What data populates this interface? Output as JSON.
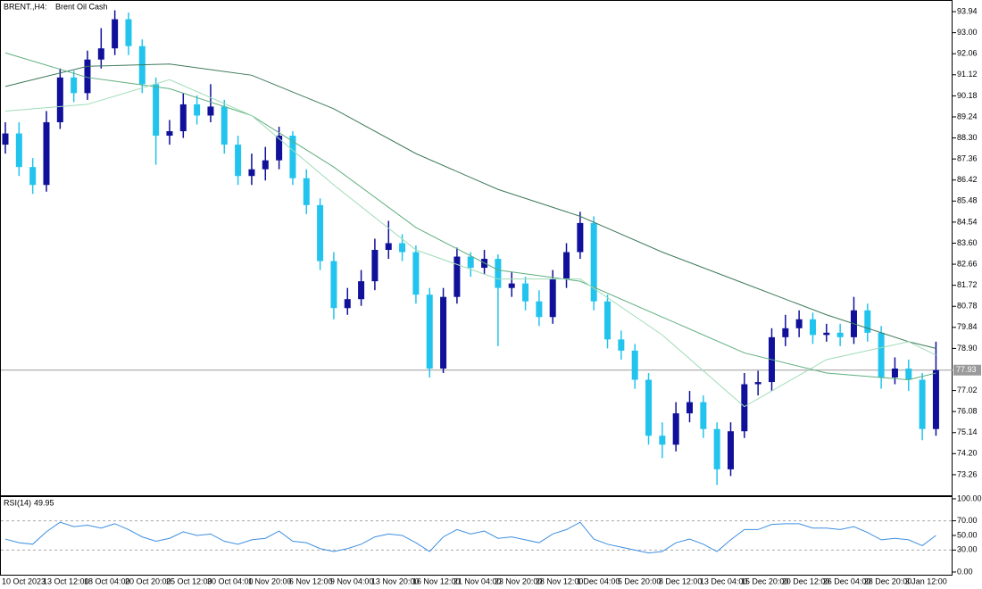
{
  "chart_data": [
    {
      "type": "candlestick",
      "symbol": "BRENT.,H4:",
      "title": "Brent Oil Cash",
      "x": [
        "10 Oct 2023",
        null,
        null,
        "13 Oct 12:00",
        null,
        null,
        "18 Oct 04:00",
        null,
        null,
        "20 Oct 20:00",
        null,
        null,
        "25 Oct 12:00",
        null,
        null,
        "30 Oct 04:00",
        null,
        null,
        "1 Nov 20:00",
        null,
        null,
        "6 Nov 12:00",
        null,
        null,
        "9 Nov 04:00",
        null,
        null,
        "13 Nov 20:00",
        null,
        null,
        "16 Nov 12:00",
        null,
        null,
        "21 Nov 04:00",
        null,
        null,
        "23 Nov 20:00",
        null,
        null,
        "28 Nov 12:00",
        null,
        null,
        "1 Dec 04:00",
        null,
        null,
        "5 Dec 20:00",
        null,
        null,
        "8 Dec 12:00",
        null,
        null,
        "13 Dec 04:00",
        null,
        null,
        "15 Dec 20:00",
        null,
        null,
        "20 Dec 12:00",
        null,
        null,
        "26 Dec 04:00",
        null,
        null,
        "28 Dec 20:00",
        null,
        null,
        "3 Jan 12:00",
        null,
        null
      ],
      "open": [
        88.0,
        88.5,
        87.0,
        86.2,
        89.0,
        91.0,
        90.3,
        91.8,
        92.3,
        93.6,
        92.4,
        90.7,
        88.4,
        88.6,
        89.8,
        89.3,
        89.7,
        88.0,
        86.6,
        86.9,
        87.3,
        88.4,
        86.5,
        85.3,
        82.8,
        80.7,
        81.1,
        81.9,
        83.3,
        83.6,
        83.2,
        81.3,
        78.0,
        81.2,
        83.0,
        82.5,
        82.9,
        81.6,
        81.8,
        81.0,
        80.3,
        82.0,
        83.2,
        84.5,
        81.0,
        79.3,
        78.8,
        77.5,
        75.0,
        74.6,
        76.0,
        76.5,
        75.3,
        73.5,
        75.2,
        77.3,
        77.4,
        79.4,
        79.8,
        80.2,
        79.5,
        79.6,
        79.4,
        80.6,
        79.6,
        77.6,
        78.0,
        77.5,
        75.3
      ],
      "high": [
        89.0,
        89.0,
        87.4,
        89.5,
        91.4,
        91.3,
        92.2,
        93.2,
        94.0,
        93.9,
        92.7,
        91.0,
        89.1,
        90.3,
        90.2,
        90.7,
        90.0,
        88.4,
        87.6,
        87.9,
        88.8,
        88.6,
        86.9,
        85.6,
        83.2,
        81.6,
        82.4,
        83.8,
        84.6,
        84.0,
        83.5,
        81.6,
        81.6,
        83.4,
        83.2,
        83.3,
        83.1,
        82.3,
        82.1,
        81.5,
        82.4,
        83.6,
        85.0,
        84.8,
        81.3,
        79.7,
        79.1,
        77.8,
        75.6,
        76.5,
        77.0,
        76.8,
        75.6,
        75.6,
        77.8,
        77.9,
        79.8,
        80.4,
        80.6,
        80.5,
        80.0,
        80.0,
        81.2,
        80.9,
        79.9,
        78.5,
        78.4,
        77.8,
        79.2
      ],
      "low": [
        87.6,
        86.6,
        85.8,
        85.9,
        88.7,
        89.9,
        90.0,
        91.4,
        92.0,
        92.0,
        90.3,
        87.1,
        88.0,
        88.3,
        88.9,
        89.0,
        87.6,
        86.2,
        86.2,
        86.4,
        86.9,
        86.2,
        84.9,
        82.4,
        80.2,
        80.4,
        80.8,
        81.5,
        82.9,
        82.8,
        80.9,
        77.6,
        77.8,
        80.9,
        82.1,
        82.2,
        79.0,
        81.2,
        80.6,
        79.9,
        80.0,
        81.6,
        82.9,
        80.6,
        78.9,
        78.4,
        77.1,
        74.6,
        74.0,
        74.3,
        75.6,
        74.9,
        72.8,
        73.2,
        74.9,
        76.8,
        77.0,
        79.0,
        79.4,
        79.1,
        79.2,
        79.0,
        79.1,
        79.2,
        77.1,
        77.3,
        77.0,
        74.8,
        75.0
      ],
      "close": [
        88.5,
        87.0,
        86.2,
        89.0,
        91.0,
        90.3,
        91.8,
        92.3,
        93.6,
        92.4,
        90.7,
        88.4,
        88.6,
        89.8,
        89.3,
        89.7,
        88.0,
        86.6,
        86.9,
        87.3,
        88.4,
        86.5,
        85.3,
        82.8,
        80.7,
        81.1,
        81.9,
        83.3,
        83.6,
        83.2,
        81.3,
        78.0,
        81.2,
        83.0,
        82.5,
        82.9,
        81.6,
        81.8,
        81.0,
        80.3,
        82.0,
        83.2,
        84.5,
        81.0,
        79.3,
        78.8,
        77.5,
        75.0,
        74.6,
        76.0,
        76.5,
        75.3,
        73.5,
        75.2,
        77.3,
        77.4,
        79.4,
        79.8,
        80.2,
        79.5,
        79.6,
        79.4,
        80.6,
        79.6,
        77.6,
        78.0,
        77.5,
        75.3,
        77.93
      ],
      "up_color": "#10109a",
      "down_color": "#22c4ee",
      "series": [
        {
          "color": "#3f7a5a",
          "x": [
            0,
            6,
            12,
            18,
            24,
            30,
            36,
            42,
            48,
            54,
            60,
            66,
            68
          ],
          "values": [
            90.6,
            91.5,
            91.6,
            91.1,
            89.6,
            87.6,
            86.0,
            84.8,
            83.2,
            81.8,
            80.4,
            79.2,
            78.9
          ]
        },
        {
          "color": "#5fae7f",
          "x": [
            0,
            6,
            12,
            18,
            24,
            30,
            36,
            42,
            48,
            54,
            60,
            66,
            68
          ],
          "values": [
            92.1,
            91.0,
            90.5,
            89.3,
            87.0,
            84.3,
            82.4,
            81.9,
            80.3,
            78.7,
            77.8,
            77.5,
            77.8
          ]
        },
        {
          "color": "#9fdcb8",
          "x": [
            0,
            6,
            12,
            18,
            24,
            30,
            36,
            42,
            48,
            54,
            60,
            66,
            68
          ],
          "values": [
            89.5,
            89.8,
            90.9,
            89.3,
            86.2,
            83.3,
            82.0,
            82.0,
            79.5,
            76.3,
            78.4,
            79.2,
            78.6
          ]
        }
      ],
      "current_price": 77.93,
      "ylim": [
        72.34,
        94.42
      ],
      "yticks": [
        93.94,
        {
          "value": 93,
          "label": "93.00"
        },
        92.06,
        91.12,
        90.18,
        89.24,
        {
          "value": 88.3,
          "label": "88.30"
        },
        87.36,
        86.42,
        85.48,
        84.54,
        {
          "value": 83.6,
          "label": "83.60"
        },
        82.66,
        81.72,
        80.78,
        79.84,
        {
          "value": 78.9,
          "label": "78.90"
        },
        77.02,
        76.08,
        75.14,
        {
          "value": 74.2,
          "label": "74.20"
        },
        73.26
      ]
    },
    {
      "type": "line",
      "title": "RSI(14)",
      "color": "#3d8fe0",
      "values": [
        45,
        40,
        38,
        55,
        68,
        62,
        64,
        60,
        66,
        58,
        48,
        42,
        46,
        55,
        50,
        52,
        42,
        38,
        44,
        46,
        56,
        42,
        40,
        32,
        28,
        32,
        38,
        48,
        52,
        50,
        40,
        28,
        48,
        58,
        52,
        56,
        46,
        48,
        44,
        40,
        52,
        58,
        68,
        45,
        38,
        34,
        30,
        26,
        28,
        40,
        45,
        38,
        28,
        44,
        58,
        58,
        65,
        66,
        66,
        60,
        60,
        58,
        62,
        54,
        44,
        46,
        44,
        36,
        49.95
      ],
      "levels": [
        70,
        30
      ],
      "ylim": [
        -3.7,
        102.4
      ],
      "yticks": [
        {
          "value": 100,
          "label": "100.00"
        },
        {
          "value": 70,
          "label": "70.00"
        },
        {
          "value": 50,
          "label": "50.00"
        },
        {
          "value": 30,
          "label": "30.00"
        },
        {
          "value": 0,
          "label": "0.00"
        }
      ]
    }
  ]
}
